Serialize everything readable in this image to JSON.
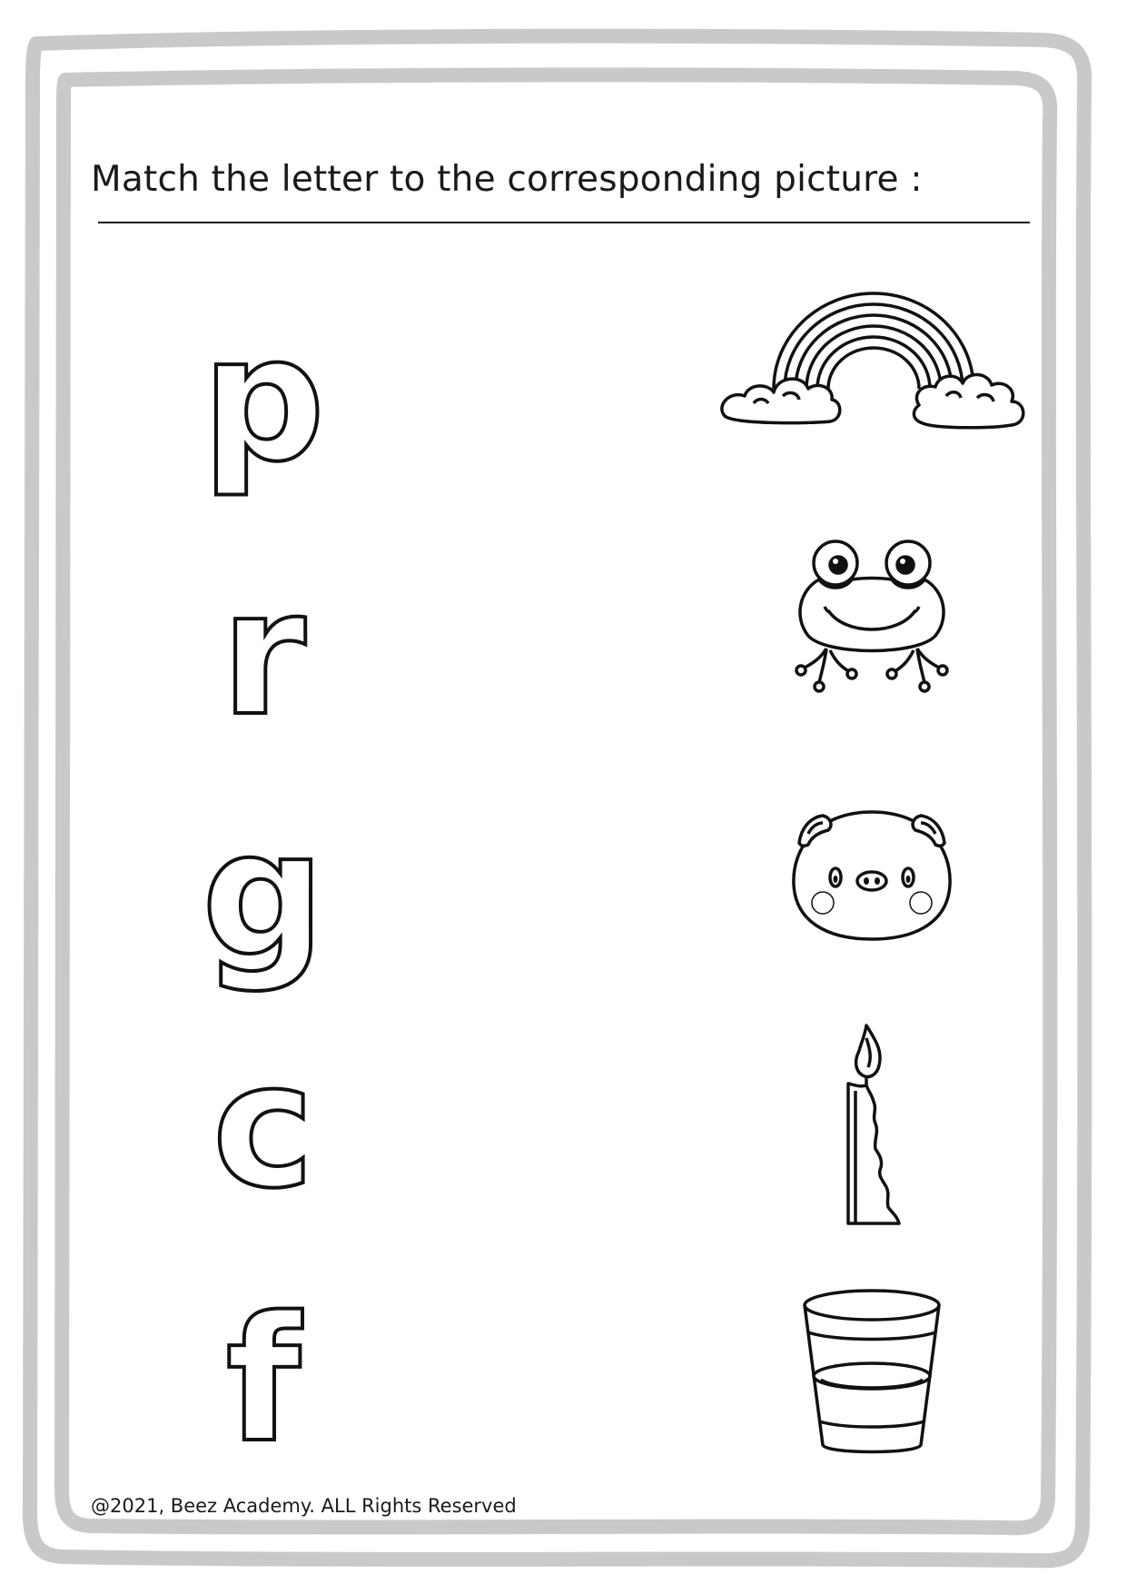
{
  "worksheet": {
    "title": "Match the letter to the corresponding  picture :",
    "letters": [
      "p",
      "r",
      "g",
      "c",
      "f"
    ],
    "pictures": [
      {
        "icon": "rainbow-icon"
      },
      {
        "icon": "frog-icon"
      },
      {
        "icon": "pig-icon"
      },
      {
        "icon": "candle-icon"
      },
      {
        "icon": "glass-of-water-icon"
      }
    ],
    "footer": "@2021, Beez Academy. ALL Rights Reserved"
  },
  "colors": {
    "frame": "#c9c9c9",
    "ink": "#111111"
  }
}
